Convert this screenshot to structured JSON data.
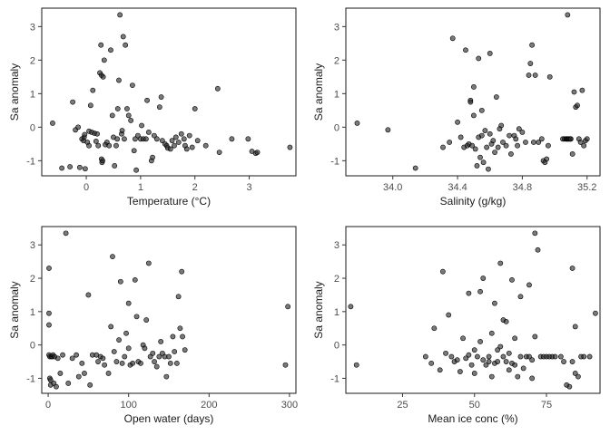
{
  "figure": {
    "background": "#ffffff",
    "point_fill": "#333333",
    "point_stroke": "#000000"
  },
  "chart_data": [
    {
      "type": "scatter",
      "xlabel": "Temperature (°C)",
      "ylabel": "Sa anomaly",
      "xlim": [
        -0.82,
        3.86
      ],
      "ylim": [
        -1.45,
        3.55
      ],
      "xticks": [
        0,
        1,
        2,
        3
      ],
      "yticks": [
        -1,
        0,
        1,
        2,
        3
      ],
      "xtick_labels": [
        "0",
        "1",
        "2",
        "3"
      ],
      "ytick_labels": [
        "-1",
        "0",
        "1",
        "2",
        "3"
      ],
      "grid": false,
      "points": [
        [
          -0.62,
          0.12
        ],
        [
          -0.45,
          -1.22
        ],
        [
          -0.3,
          -1.18
        ],
        [
          -0.25,
          0.75
        ],
        [
          -0.2,
          -0.08
        ],
        [
          -0.15,
          0.0
        ],
        [
          -0.12,
          -1.2
        ],
        [
          -0.08,
          -0.35
        ],
        [
          -0.05,
          -0.4
        ],
        [
          -0.04,
          -0.3
        ],
        [
          -0.03,
          -0.22
        ],
        [
          -0.02,
          -1.24
        ],
        [
          0.02,
          -0.45
        ],
        [
          0.05,
          -0.12
        ],
        [
          0.05,
          -0.55
        ],
        [
          0.08,
          0.65
        ],
        [
          0.1,
          -0.15
        ],
        [
          0.12,
          1.1
        ],
        [
          0.15,
          -0.18
        ],
        [
          0.18,
          -0.42
        ],
        [
          0.2,
          -0.2
        ],
        [
          0.22,
          -0.55
        ],
        [
          0.25,
          1.62
        ],
        [
          0.27,
          2.45
        ],
        [
          0.28,
          1.55
        ],
        [
          0.28,
          -0.95
        ],
        [
          0.29,
          -1.05
        ],
        [
          0.3,
          -1.0
        ],
        [
          0.31,
          1.5
        ],
        [
          0.33,
          2.0
        ],
        [
          0.35,
          -0.52
        ],
        [
          0.38,
          -0.45
        ],
        [
          0.42,
          -0.55
        ],
        [
          0.45,
          2.3
        ],
        [
          0.48,
          0.35
        ],
        [
          0.5,
          -0.3
        ],
        [
          0.52,
          -1.15
        ],
        [
          0.55,
          -0.55
        ],
        [
          0.57,
          -0.35
        ],
        [
          0.58,
          0.55
        ],
        [
          0.6,
          1.4
        ],
        [
          0.62,
          3.35
        ],
        [
          0.65,
          -0.2
        ],
        [
          0.66,
          -0.1
        ],
        [
          0.68,
          2.7
        ],
        [
          0.7,
          -0.35
        ],
        [
          0.72,
          2.45
        ],
        [
          0.75,
          0.55
        ],
        [
          0.78,
          0.35
        ],
        [
          0.82,
          0.2
        ],
        [
          0.85,
          1.25
        ],
        [
          0.88,
          -0.7
        ],
        [
          0.9,
          -0.35
        ],
        [
          0.92,
          -1.28
        ],
        [
          0.95,
          -0.25
        ],
        [
          1.0,
          -0.35
        ],
        [
          1.02,
          0.05
        ],
        [
          1.05,
          -0.35
        ],
        [
          1.1,
          -0.35
        ],
        [
          1.12,
          0.8
        ],
        [
          1.15,
          -0.15
        ],
        [
          1.2,
          -1.0
        ],
        [
          1.22,
          -0.9
        ],
        [
          1.25,
          -0.25
        ],
        [
          1.3,
          -0.35
        ],
        [
          1.35,
          0.6
        ],
        [
          1.38,
          0.9
        ],
        [
          1.4,
          -0.4
        ],
        [
          1.45,
          -0.5
        ],
        [
          1.48,
          -0.55
        ],
        [
          1.5,
          -0.62
        ],
        [
          1.55,
          -0.65
        ],
        [
          1.58,
          -0.4
        ],
        [
          1.62,
          -0.55
        ],
        [
          1.65,
          -0.3
        ],
        [
          1.7,
          -0.45
        ],
        [
          1.75,
          -0.2
        ],
        [
          1.8,
          -0.35
        ],
        [
          1.82,
          -0.55
        ],
        [
          1.85,
          -0.65
        ],
        [
          1.9,
          -0.25
        ],
        [
          1.95,
          -0.6
        ],
        [
          2.0,
          0.55
        ],
        [
          2.05,
          -0.4
        ],
        [
          2.2,
          -0.55
        ],
        [
          2.42,
          1.15
        ],
        [
          2.45,
          -0.75
        ],
        [
          2.68,
          -0.35
        ],
        [
          2.98,
          -0.35
        ],
        [
          3.05,
          -0.72
        ],
        [
          3.12,
          -0.78
        ],
        [
          3.15,
          -0.75
        ],
        [
          3.75,
          -0.6
        ]
      ]
    },
    {
      "type": "scatter",
      "xlabel": "Salinity (g/kg)",
      "ylabel": "Sa anomaly",
      "xlim": [
        33.71,
        35.28
      ],
      "ylim": [
        -1.45,
        3.55
      ],
      "xticks": [
        34.0,
        34.4,
        34.8,
        35.2
      ],
      "yticks": [
        -1,
        0,
        1,
        2,
        3
      ],
      "xtick_labels": [
        "34.0",
        "34.4",
        "34.8",
        "35.2"
      ],
      "ytick_labels": [
        "-1",
        "0",
        "1",
        "2",
        "3"
      ],
      "grid": false,
      "points": [
        [
          33.78,
          0.12
        ],
        [
          33.97,
          -0.08
        ],
        [
          34.14,
          -1.22
        ],
        [
          34.31,
          -0.6
        ],
        [
          34.35,
          -0.45
        ],
        [
          34.37,
          2.65
        ],
        [
          34.4,
          0.15
        ],
        [
          34.42,
          -0.3
        ],
        [
          34.44,
          -0.6
        ],
        [
          34.45,
          2.3
        ],
        [
          34.46,
          -0.55
        ],
        [
          34.47,
          -0.5
        ],
        [
          34.48,
          0.8
        ],
        [
          34.48,
          0.75
        ],
        [
          34.49,
          -0.55
        ],
        [
          34.5,
          1.2
        ],
        [
          34.5,
          0.35
        ],
        [
          34.51,
          -0.65
        ],
        [
          34.52,
          -1.15
        ],
        [
          34.53,
          -0.3
        ],
        [
          34.53,
          2.05
        ],
        [
          34.54,
          -0.9
        ],
        [
          34.55,
          -0.25
        ],
        [
          34.55,
          0.5
        ],
        [
          34.56,
          -1.05
        ],
        [
          34.57,
          -0.1
        ],
        [
          34.58,
          -0.6
        ],
        [
          34.59,
          -1.25
        ],
        [
          34.6,
          -0.2
        ],
        [
          34.6,
          2.2
        ],
        [
          34.61,
          -0.5
        ],
        [
          34.62,
          -0.4
        ],
        [
          34.63,
          -0.75
        ],
        [
          34.64,
          0.9
        ],
        [
          34.65,
          -0.6
        ],
        [
          34.66,
          -0.05
        ],
        [
          34.67,
          0.05
        ],
        [
          34.68,
          -0.45
        ],
        [
          34.7,
          -0.55
        ],
        [
          34.72,
          -0.25
        ],
        [
          34.73,
          -0.8
        ],
        [
          34.75,
          -0.25
        ],
        [
          34.76,
          -0.35
        ],
        [
          34.77,
          -0.55
        ],
        [
          34.78,
          -0.05
        ],
        [
          34.8,
          -0.15
        ],
        [
          34.82,
          -0.45
        ],
        [
          34.84,
          1.55
        ],
        [
          34.85,
          1.9
        ],
        [
          34.86,
          2.45
        ],
        [
          34.87,
          -0.45
        ],
        [
          34.88,
          1.55
        ],
        [
          34.9,
          -0.45
        ],
        [
          34.92,
          -0.35
        ],
        [
          34.93,
          -1.0
        ],
        [
          34.94,
          -1.05
        ],
        [
          34.95,
          -0.95
        ],
        [
          34.96,
          -0.55
        ],
        [
          34.97,
          1.5
        ],
        [
          35.05,
          -0.35
        ],
        [
          35.06,
          -0.35
        ],
        [
          35.07,
          -0.35
        ],
        [
          35.075,
          -0.35
        ],
        [
          35.08,
          -0.35
        ],
        [
          35.085,
          -0.35
        ],
        [
          35.09,
          -0.35
        ],
        [
          35.095,
          -0.35
        ],
        [
          35.1,
          -0.35
        ],
        [
          35.08,
          3.35
        ],
        [
          35.11,
          -0.8
        ],
        [
          35.12,
          1.05
        ],
        [
          35.13,
          0.6
        ],
        [
          35.14,
          0.65
        ],
        [
          35.15,
          -0.35
        ],
        [
          35.16,
          -0.45
        ],
        [
          35.17,
          1.1
        ],
        [
          35.18,
          -0.55
        ],
        [
          35.19,
          -0.4
        ],
        [
          35.2,
          -0.35
        ]
      ]
    },
    {
      "type": "scatter",
      "xlabel": "Open water (days)",
      "ylabel": "Sa anomaly",
      "xlim": [
        -8,
        308
      ],
      "ylim": [
        -1.45,
        3.55
      ],
      "xticks": [
        0,
        100,
        200,
        300
      ],
      "yticks": [
        -1,
        0,
        1,
        2,
        3
      ],
      "xtick_labels": [
        "0",
        "100",
        "200",
        "300"
      ],
      "ytick_labels": [
        "-1",
        "0",
        "1",
        "2",
        "3"
      ],
      "grid": false,
      "points": [
        [
          1,
          2.3
        ],
        [
          1,
          0.95
        ],
        [
          1,
          0.6
        ],
        [
          1,
          -0.3
        ],
        [
          2,
          -0.35
        ],
        [
          2,
          -1.0
        ],
        [
          3,
          -1.05
        ],
        [
          3,
          -1.2
        ],
        [
          4,
          -0.35
        ],
        [
          5,
          -0.35
        ],
        [
          6,
          -0.3
        ],
        [
          7,
          -1.15
        ],
        [
          8,
          -0.35
        ],
        [
          10,
          -1.25
        ],
        [
          12,
          -0.4
        ],
        [
          15,
          -0.85
        ],
        [
          18,
          -0.3
        ],
        [
          22,
          3.35
        ],
        [
          25,
          -1.15
        ],
        [
          30,
          -0.4
        ],
        [
          35,
          -0.3
        ],
        [
          38,
          -0.95
        ],
        [
          42,
          -0.55
        ],
        [
          45,
          -0.85
        ],
        [
          50,
          1.5
        ],
        [
          52,
          -1.2
        ],
        [
          55,
          -0.3
        ],
        [
          60,
          -0.3
        ],
        [
          62,
          -0.5
        ],
        [
          65,
          -0.35
        ],
        [
          68,
          -0.4
        ],
        [
          70,
          -0.6
        ],
        [
          75,
          -0.85
        ],
        [
          78,
          0.55
        ],
        [
          80,
          2.65
        ],
        [
          82,
          -0.2
        ],
        [
          85,
          -0.5
        ],
        [
          88,
          0.15
        ],
        [
          90,
          1.9
        ],
        [
          92,
          -0.55
        ],
        [
          95,
          -0.35
        ],
        [
          97,
          0.35
        ],
        [
          100,
          1.25
        ],
        [
          100,
          -0.1
        ],
        [
          102,
          -0.6
        ],
        [
          105,
          -0.55
        ],
        [
          108,
          1.95
        ],
        [
          110,
          0.85
        ],
        [
          112,
          -0.5
        ],
        [
          115,
          -0.55
        ],
        [
          118,
          0.0
        ],
        [
          120,
          -0.1
        ],
        [
          122,
          0.75
        ],
        [
          125,
          2.45
        ],
        [
          127,
          -0.35
        ],
        [
          130,
          -0.25
        ],
        [
          132,
          -0.5
        ],
        [
          135,
          -0.65
        ],
        [
          138,
          -0.35
        ],
        [
          140,
          0.1
        ],
        [
          142,
          -0.25
        ],
        [
          145,
          -0.35
        ],
        [
          147,
          -0.95
        ],
        [
          150,
          -0.35
        ],
        [
          152,
          -0.55
        ],
        [
          155,
          0.25
        ],
        [
          157,
          -0.2
        ],
        [
          160,
          -0.55
        ],
        [
          162,
          1.45
        ],
        [
          164,
          0.5
        ],
        [
          166,
          2.2
        ],
        [
          167,
          0.25
        ],
        [
          170,
          -0.15
        ],
        [
          295,
          -0.6
        ],
        [
          298,
          1.15
        ]
      ]
    },
    {
      "type": "scatter",
      "xlabel": "Mean ice conc (%)",
      "ylabel": "Sa anomaly",
      "xlim": [
        5.3,
        93.6
      ],
      "ylim": [
        -1.45,
        3.55
      ],
      "xticks": [
        25,
        50,
        75
      ],
      "yticks": [
        -1,
        0,
        1,
        2,
        3
      ],
      "xtick_labels": [
        "25",
        "50",
        "75"
      ],
      "ytick_labels": [
        "-1",
        "0",
        "1",
        "2",
        "3"
      ],
      "grid": false,
      "points": [
        [
          7,
          1.15
        ],
        [
          9,
          -0.6
        ],
        [
          33,
          -0.35
        ],
        [
          35,
          -0.55
        ],
        [
          36,
          0.5
        ],
        [
          38,
          -0.75
        ],
        [
          39,
          2.2
        ],
        [
          40,
          -0.25
        ],
        [
          41,
          0.9
        ],
        [
          42,
          -0.35
        ],
        [
          43,
          -0.5
        ],
        [
          44,
          -0.45
        ],
        [
          45,
          -0.8
        ],
        [
          46,
          0.2
        ],
        [
          47,
          -0.4
        ],
        [
          48,
          1.55
        ],
        [
          48,
          -0.3
        ],
        [
          49,
          -0.6
        ],
        [
          50,
          -0.15
        ],
        [
          50,
          -0.85
        ],
        [
          51,
          -0.35
        ],
        [
          52,
          1.6
        ],
        [
          52,
          0.1
        ],
        [
          53,
          -0.45
        ],
        [
          53,
          2.0
        ],
        [
          54,
          -0.6
        ],
        [
          55,
          -0.5
        ],
        [
          55,
          -0.35
        ],
        [
          56,
          0.35
        ],
        [
          56,
          -0.95
        ],
        [
          57,
          -0.55
        ],
        [
          57,
          1.25
        ],
        [
          58,
          -0.15
        ],
        [
          58,
          -0.5
        ],
        [
          59,
          2.45
        ],
        [
          59,
          -0.05
        ],
        [
          60,
          0.75
        ],
        [
          60,
          -0.35
        ],
        [
          61,
          -0.5
        ],
        [
          61,
          0.7
        ],
        [
          62,
          -0.25
        ],
        [
          62,
          -0.75
        ],
        [
          63,
          1.95
        ],
        [
          63,
          -0.55
        ],
        [
          64,
          0.2
        ],
        [
          64,
          -0.6
        ],
        [
          65,
          -0.95
        ],
        [
          66,
          -0.35
        ],
        [
          66,
          1.45
        ],
        [
          67,
          -0.7
        ],
        [
          68,
          -0.35
        ],
        [
          69,
          -0.35
        ],
        [
          69,
          1.8
        ],
        [
          70,
          -1.0
        ],
        [
          70,
          -0.45
        ],
        [
          71,
          3.35
        ],
        [
          71,
          0.25
        ],
        [
          72,
          2.85
        ],
        [
          73,
          -0.35
        ],
        [
          74,
          -0.35
        ],
        [
          75,
          -0.35
        ],
        [
          76,
          -0.35
        ],
        [
          77,
          -0.35
        ],
        [
          78,
          -0.35
        ],
        [
          80,
          -0.35
        ],
        [
          81,
          -0.5
        ],
        [
          82,
          -1.2
        ],
        [
          83,
          -1.25
        ],
        [
          84,
          -0.5
        ],
        [
          84,
          2.3
        ],
        [
          85,
          0.55
        ],
        [
          85,
          -0.85
        ],
        [
          86,
          -0.95
        ],
        [
          87,
          -0.35
        ],
        [
          88,
          -0.35
        ],
        [
          90,
          -0.35
        ],
        [
          92,
          0.95
        ]
      ]
    }
  ]
}
